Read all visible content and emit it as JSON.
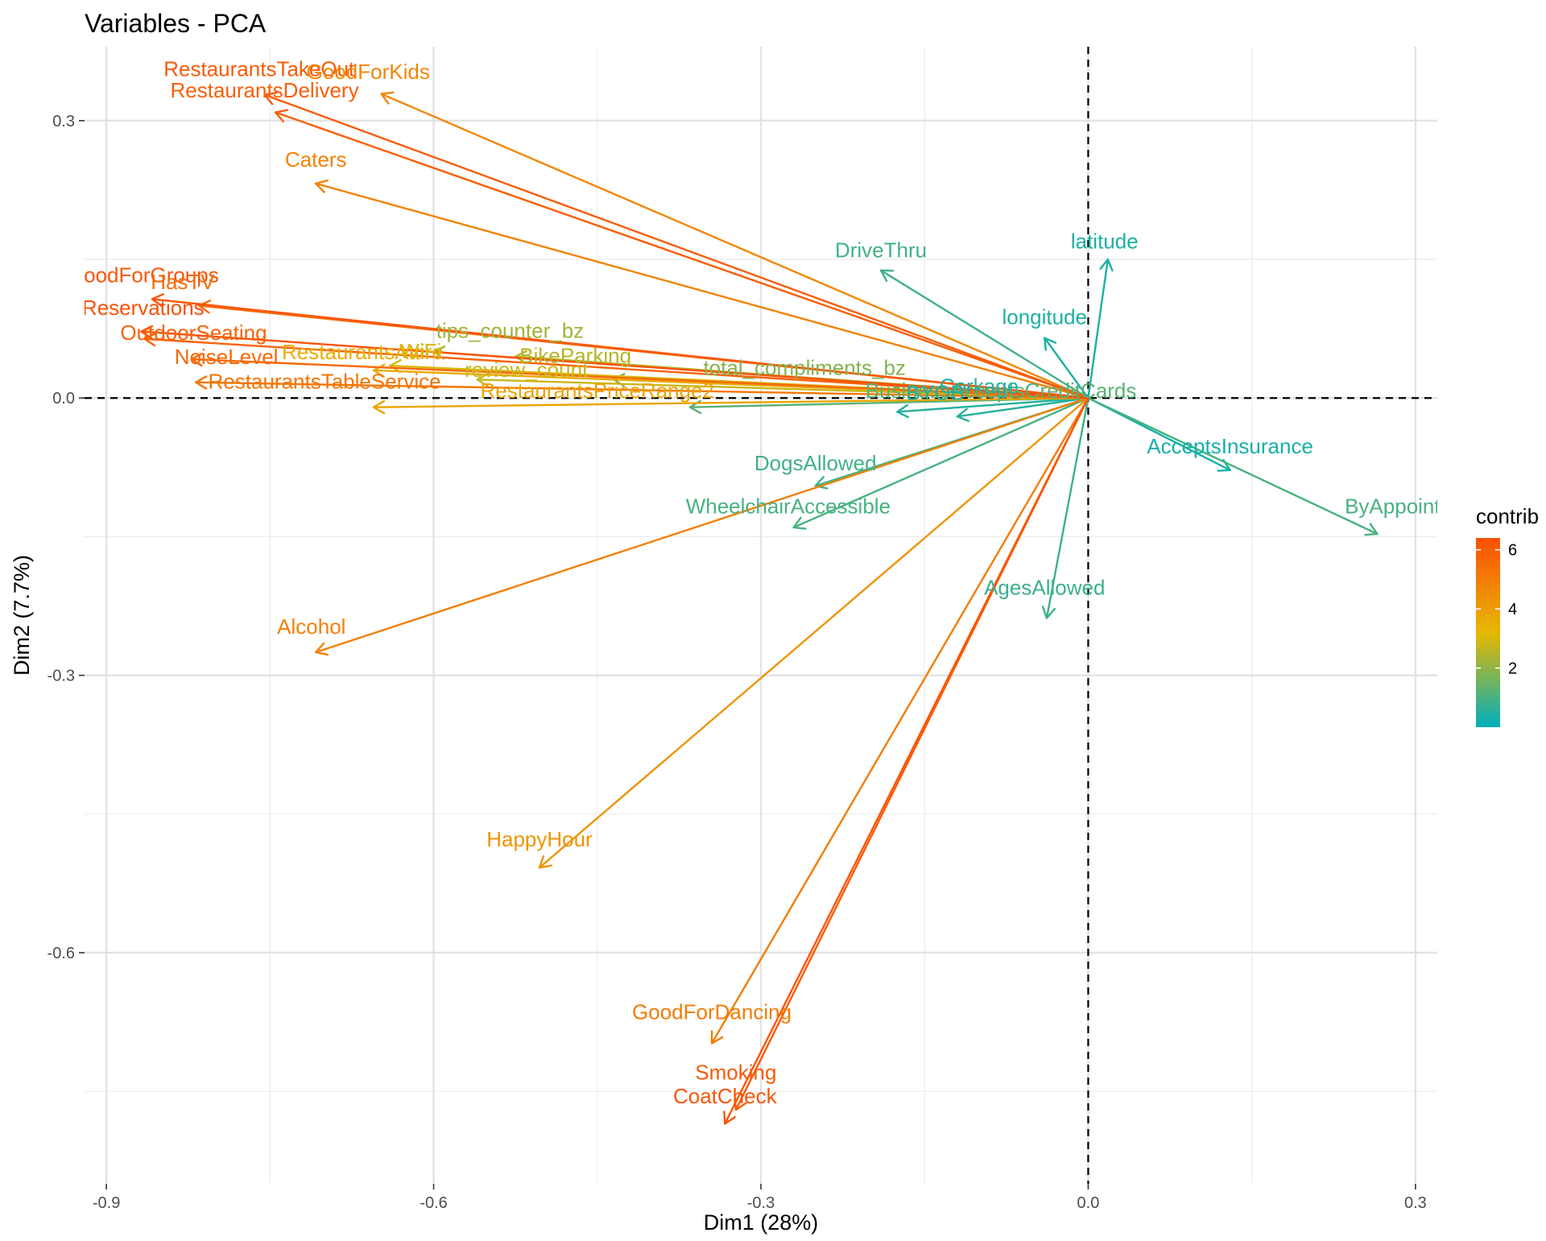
{
  "chart_data": {
    "type": "scatter",
    "subtype": "pca-variable-correlation-arrows",
    "title": "Variables - PCA",
    "xlabel": "Dim1 (28%)",
    "ylabel": "Dim2 (7.7%)",
    "xlim": [
      -0.92,
      0.32
    ],
    "ylim": [
      -0.85,
      0.38
    ],
    "x_ticks": [
      -0.9,
      -0.6,
      -0.3,
      0.0,
      0.3
    ],
    "x_tick_labels": [
      "-0.9",
      "-0.6",
      "-0.3",
      "0.0",
      "0.3"
    ],
    "y_ticks": [
      -0.6,
      -0.3,
      0.0,
      0.3
    ],
    "y_tick_labels": [
      "-0.6",
      "-0.3",
      "0.0",
      "0.3"
    ],
    "grid": true,
    "reference_lines": {
      "x": 0,
      "y": 0,
      "style": "dashed"
    },
    "legend": {
      "title": "contrib",
      "placement": "right",
      "min": 0.0,
      "max": 6.4,
      "ticks": [
        2,
        4,
        6
      ],
      "tick_labels": [
        "2",
        "4",
        "6"
      ],
      "gradient": [
        "#00AFBB",
        "#E7B800",
        "#FC4E07"
      ]
    },
    "variables": [
      {
        "name": "RestaurantsTakeOut",
        "label": "RestaurantsTakeOut",
        "x": -0.755,
        "y": 0.328,
        "contrib": 6.0,
        "lx": -0.76,
        "ly": 0.348
      },
      {
        "name": "GoodForKids",
        "label": "GoodForKids",
        "x": -0.648,
        "y": 0.329,
        "contrib": 4.7,
        "lx": -0.66,
        "ly": 0.345
      },
      {
        "name": "RestaurantsDelivery",
        "label": "RestaurantsDelivery",
        "x": -0.745,
        "y": 0.309,
        "contrib": 5.9,
        "lx": -0.755,
        "ly": 0.325
      },
      {
        "name": "Caters",
        "label": "Caters",
        "x": -0.708,
        "y": 0.232,
        "contrib": 4.8,
        "lx": -0.708,
        "ly": 0.25
      },
      {
        "name": "RestaurantsGoodForGroups",
        "label": "RestaurantsGoodForGroups",
        "x": -0.858,
        "y": 0.107,
        "contrib": 6.2,
        "lx": -0.918,
        "ly": 0.125
      },
      {
        "name": "HasTV",
        "label": "HasTV",
        "x": -0.815,
        "y": 0.1,
        "contrib": 5.5,
        "lx": -0.83,
        "ly": 0.118
      },
      {
        "name": "RestaurantsReservations",
        "label": "RestaurantsReservations",
        "x": -0.868,
        "y": 0.072,
        "contrib": 6.3,
        "lx": -0.918,
        "ly": 0.09
      },
      {
        "name": "OutdoorSeating",
        "label": "OutdoorSeating",
        "x": -0.865,
        "y": 0.064,
        "contrib": 5.8,
        "lx": -0.82,
        "ly": 0.063
      },
      {
        "name": "NoiseLevel",
        "label": "NoiseLevel",
        "x": -0.822,
        "y": 0.042,
        "contrib": 5.6,
        "lx": -0.79,
        "ly": 0.037
      },
      {
        "name": "tips_counter_bz",
        "label": "tips_counter_bz",
        "x": -0.6,
        "y": 0.05,
        "contrib": 2.2,
        "lx": -0.53,
        "ly": 0.065
      },
      {
        "name": "RestaurantsAttire",
        "label": "RestaurantsAttire",
        "x": -0.655,
        "y": 0.03,
        "contrib": 3.6,
        "lx": -0.665,
        "ly": 0.042
      },
      {
        "name": "WiFi",
        "label": "WiFi",
        "x": -0.64,
        "y": 0.035,
        "contrib": 3.0,
        "lx": -0.612,
        "ly": 0.043
      },
      {
        "name": "BikeParking",
        "label": "BikeParking",
        "x": -0.525,
        "y": 0.045,
        "contrib": 2.5,
        "lx": -0.47,
        "ly": 0.038
      },
      {
        "name": "review_count",
        "label": "review_count",
        "x": -0.56,
        "y": 0.02,
        "contrib": 2.8,
        "lx": -0.515,
        "ly": 0.023
      },
      {
        "name": "RestaurantsTableService",
        "label": "RestaurantsTableService",
        "x": -0.818,
        "y": 0.017,
        "contrib": 5.2,
        "lx": -0.7,
        "ly": 0.01
      },
      {
        "name": "RestaurantsPriceRange2",
        "label": "RestaurantsPriceRange2",
        "x": -0.655,
        "y": -0.01,
        "contrib": 3.8,
        "lx": -0.45,
        "ly": 0.0
      },
      {
        "name": "total_compliments_bz",
        "label": "total_compliments_bz",
        "x": -0.435,
        "y": 0.02,
        "contrib": 1.8,
        "lx": -0.26,
        "ly": 0.025
      },
      {
        "name": "BusinessAcceptsCreditCards",
        "label": "BusinessAcceptsCreditCards",
        "x": -0.365,
        "y": -0.01,
        "contrib": 1.2,
        "lx": -0.08,
        "ly": 0.0
      },
      {
        "name": "DriveThru",
        "label": "DriveThru",
        "x": -0.19,
        "y": 0.138,
        "contrib": 0.9,
        "lx": -0.19,
        "ly": 0.152
      },
      {
        "name": "latitude",
        "label": "latitude",
        "x": 0.018,
        "y": 0.15,
        "contrib": 0.4,
        "lx": 0.015,
        "ly": 0.162
      },
      {
        "name": "longitude",
        "label": "longitude",
        "x": -0.04,
        "y": 0.065,
        "contrib": 0.4,
        "lx": -0.04,
        "ly": 0.08
      },
      {
        "name": "BYOB",
        "label": "BYOB",
        "x": -0.175,
        "y": -0.015,
        "contrib": 0.5,
        "lx": -0.14,
        "ly": -0.002
      },
      {
        "name": "Corkage",
        "label": "Corkage",
        "x": -0.12,
        "y": -0.02,
        "contrib": 0.5,
        "lx": -0.1,
        "ly": 0.005
      },
      {
        "name": "DogsAllowed",
        "label": "DogsAllowed",
        "x": -0.25,
        "y": -0.095,
        "contrib": 0.9,
        "lx": -0.25,
        "ly": -0.078
      },
      {
        "name": "WheelchairAccessible",
        "label": "WheelchairAccessible",
        "x": -0.27,
        "y": -0.14,
        "contrib": 1.0,
        "lx": -0.275,
        "ly": -0.125
      },
      {
        "name": "AcceptsInsurance",
        "label": "AcceptsInsurance",
        "x": 0.13,
        "y": -0.078,
        "contrib": 0.3,
        "lx": 0.13,
        "ly": -0.06
      },
      {
        "name": "ByAppointmentOnly",
        "label": "ByAppointmentOnly",
        "x": 0.265,
        "y": -0.147,
        "contrib": 1.0,
        "lx": 0.32,
        "ly": -0.125
      },
      {
        "name": "AgesAllowed",
        "label": "AgesAllowed",
        "x": -0.038,
        "y": -0.238,
        "contrib": 0.8,
        "lx": -0.04,
        "ly": -0.213
      },
      {
        "name": "Alcohol",
        "label": "Alcohol",
        "x": -0.708,
        "y": -0.275,
        "contrib": 4.9,
        "lx": -0.712,
        "ly": -0.255
      },
      {
        "name": "HappyHour",
        "label": "HappyHour",
        "x": -0.503,
        "y": -0.508,
        "contrib": 4.3,
        "lx": -0.503,
        "ly": -0.485
      },
      {
        "name": "GoodForDancing",
        "label": "GoodForDancing",
        "x": -0.345,
        "y": -0.698,
        "contrib": 5.0,
        "lx": -0.345,
        "ly": -0.672
      },
      {
        "name": "Smoking",
        "label": "Smoking",
        "x": -0.323,
        "y": -0.77,
        "contrib": 6.0,
        "lx": -0.323,
        "ly": -0.737
      },
      {
        "name": "CoatCheck",
        "label": "CoatCheck",
        "x": -0.333,
        "y": -0.785,
        "contrib": 6.2,
        "lx": -0.333,
        "ly": -0.763
      }
    ]
  }
}
